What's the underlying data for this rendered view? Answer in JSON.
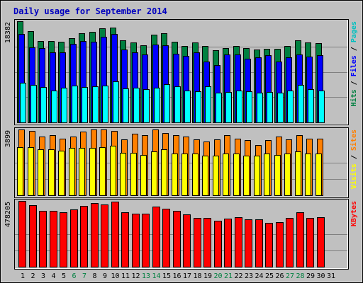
{
  "chart_data": {
    "type": "bar",
    "title": "Daily usage for September 2014",
    "categories": [
      "1",
      "2",
      "3",
      "4",
      "5",
      "6",
      "7",
      "8",
      "9",
      "10",
      "11",
      "12",
      "13",
      "14",
      "15",
      "16",
      "17",
      "18",
      "19",
      "20",
      "21",
      "22",
      "23",
      "24",
      "25",
      "26",
      "27",
      "28",
      "29",
      "30",
      "31"
    ],
    "weekend_days": [
      6,
      7,
      13,
      14,
      20,
      21,
      27,
      28
    ],
    "weekend_color": "#008040",
    "weekday_color": "#000000",
    "panels": [
      {
        "scale_label": "18382",
        "ylim": [
          0,
          18382
        ],
        "right_labels": [
          {
            "text": "Hits",
            "color": "#008040"
          },
          {
            "text": " / ",
            "color": "#000000"
          },
          {
            "text": "Files",
            "color": "#0000ff"
          },
          {
            "text": " / ",
            "color": "#000000"
          },
          {
            "text": "Pages",
            "color": "#00c0c0"
          }
        ],
        "series": [
          {
            "name": "Hits",
            "color": "#008040",
            "values": [
              18382,
              16540,
              14810,
              14810,
              14680,
              15300,
              16260,
              16390,
              17040,
              17240,
              14940,
              14480,
              14030,
              15910,
              16260,
              14680,
              13890,
              14520,
              13890,
              13050,
              13500,
              13890,
              13500,
              13180,
              13320,
              13320,
              13890,
              14940,
              14520,
              14400
            ]
          },
          {
            "name": "Files",
            "color": "#0000ff",
            "values": [
              16020,
              13580,
              13460,
              12720,
              12720,
              14260,
              14780,
              14680,
              15610,
              16020,
              13180,
              12720,
              12340,
              14120,
              14030,
              12460,
              12030,
              12720,
              11080,
              10420,
              12380,
              12380,
              11600,
              11850,
              12160,
              11080,
              11850,
              12340,
              11960,
              12210
            ]
          },
          {
            "name": "Pages",
            "color": "#00ffff",
            "values": [
              7240,
              6840,
              6420,
              5840,
              6290,
              6660,
              6420,
              6540,
              6660,
              7500,
              6150,
              6290,
              6020,
              6290,
              6910,
              6540,
              5760,
              5600,
              6540,
              5380,
              5530,
              5760,
              5600,
              5370,
              5530,
              5440,
              5840,
              6840,
              6020,
              5840
            ]
          }
        ]
      },
      {
        "scale_label": "3899",
        "ylim": [
          0,
          3899
        ],
        "right_labels": [
          {
            "text": "Visits",
            "color": "#ffff00"
          },
          {
            "text": " / ",
            "color": "#000000"
          },
          {
            "text": "Sites",
            "color": "#ff8000"
          }
        ],
        "series": [
          {
            "name": "Sites",
            "color": "#ff8000",
            "values": [
              3899,
              3830,
              3500,
              3570,
              3370,
              3500,
              3770,
              3899,
              3899,
              3830,
              3310,
              3630,
              3570,
              3899,
              3700,
              3570,
              3500,
              3310,
              3180,
              3310,
              3570,
              3370,
              3250,
              2990,
              3250,
              3500,
              3310,
              3570,
              3370,
              3370
            ]
          },
          {
            "name": "Visits",
            "color": "#ffff00",
            "values": [
              2850,
              2850,
              2720,
              2720,
              2660,
              2790,
              2790,
              2790,
              2850,
              2920,
              2530,
              2530,
              2410,
              2590,
              2720,
              2460,
              2460,
              2460,
              2330,
              2340,
              2460,
              2460,
              2340,
              2340,
              2460,
              2410,
              2460,
              2600,
              2460,
              2460
            ]
          }
        ]
      },
      {
        "scale_label": "478205",
        "ylim": [
          0,
          478205
        ],
        "right_labels": [
          {
            "text": "KBytes",
            "color": "#ff0000"
          }
        ],
        "series": [
          {
            "name": "KBytes",
            "color": "#ff0000",
            "values": [
              478205,
              446800,
              404500,
              404500,
              398500,
              416600,
              440800,
              464900,
              452800,
              470900,
              398500,
              386500,
              386500,
              434700,
              422700,
              404500,
              380400,
              356300,
              356300,
              332200,
              350300,
              362300,
              344200,
              344200,
              320100,
              326100,
              356300,
              398500,
              356300,
              362300
            ]
          }
        ]
      }
    ]
  }
}
